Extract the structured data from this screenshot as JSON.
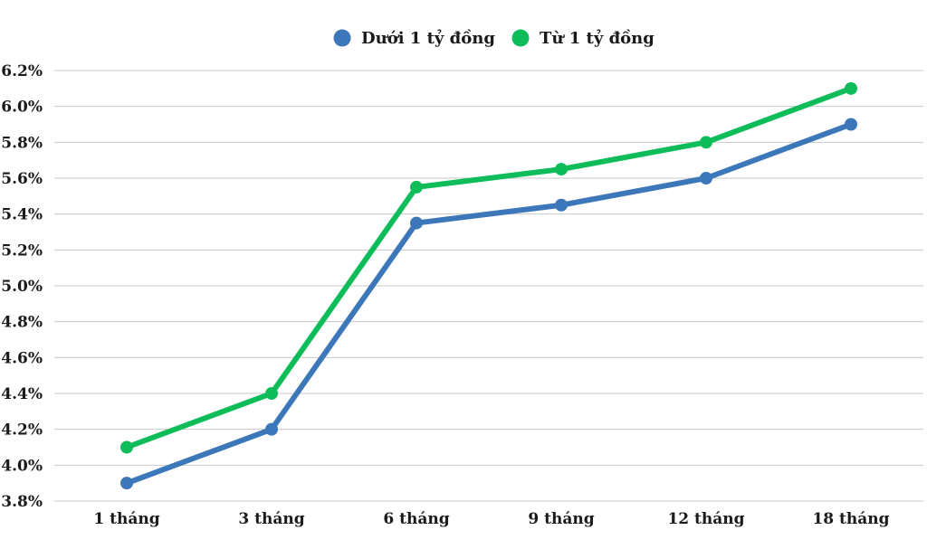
{
  "chart_data": {
    "type": "line",
    "categories": [
      "1 tháng",
      "3 tháng",
      "6 tháng",
      "9 tháng",
      "12 tháng",
      "18 tháng"
    ],
    "series": [
      {
        "name": "Dưới 1 tỷ đồng",
        "color": "#3b77b9",
        "values": [
          3.9,
          4.2,
          5.35,
          5.45,
          5.6,
          5.9
        ]
      },
      {
        "name": "Từ 1 tỷ đồng",
        "color": "#0ebd5a",
        "values": [
          4.1,
          4.4,
          5.55,
          5.65,
          5.8,
          6.1
        ]
      }
    ],
    "y_ticks": [
      "3.8%",
      "4.0%",
      "4.2%",
      "4.4%",
      "4.6%",
      "4.8%",
      "5.0%",
      "5.2%",
      "5.4%",
      "5.6%",
      "5.8%",
      "6.0%",
      "6.2%"
    ],
    "ylim": [
      3.8,
      6.2
    ],
    "title": "",
    "xlabel": "",
    "ylabel": "",
    "grid": true,
    "legend_position": "top-center"
  }
}
